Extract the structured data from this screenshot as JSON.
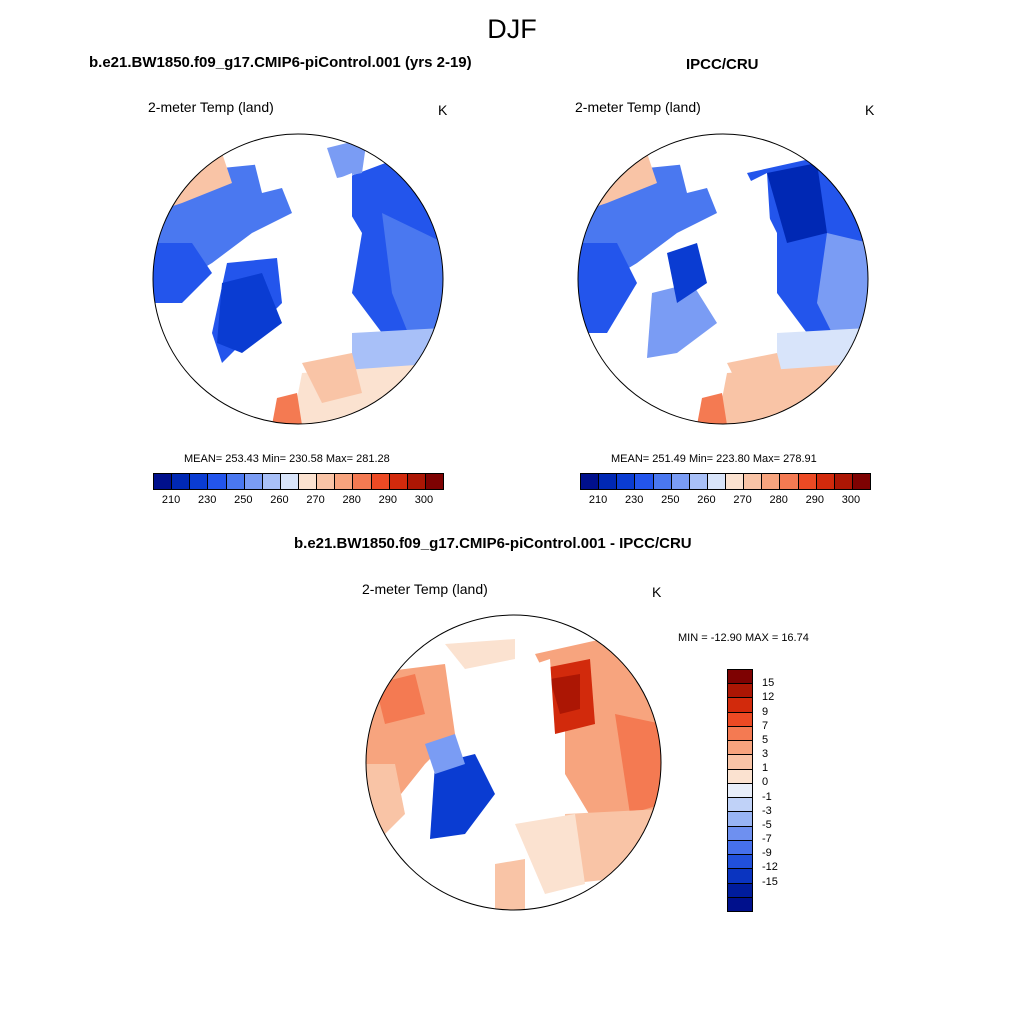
{
  "main_title": "DJF",
  "panels": [
    {
      "title": "b.e21.BW1850.f09_g17.CMIP6-piControl.001 (yrs 2-19)",
      "variable": "2-meter Temp (land)",
      "units": "K",
      "stats": "MEAN= 253.43  Min= 230.58  Max= 281.28"
    },
    {
      "title": "IPCC/CRU",
      "variable": "2-meter Temp (land)",
      "units": "K",
      "stats": "MEAN= 251.49  Min= 223.80  Max= 278.91"
    },
    {
      "title": "b.e21.BW1850.f09_g17.CMIP6-piControl.001 - IPCC/CRU",
      "variable": "2-meter Temp (land)",
      "units": "K",
      "stats": "MIN = -12.90 MAX =  16.74"
    }
  ],
  "colorbar_abs": {
    "colors": [
      "#00108c",
      "#0028b4",
      "#0a3cd2",
      "#2355ec",
      "#4a78f0",
      "#7a9cf4",
      "#a8c0f8",
      "#d8e4fa",
      "#fbe2d0",
      "#f9c4a6",
      "#f7a47e",
      "#f47a52",
      "#ec4a24",
      "#d22a0c",
      "#ac1604",
      "#7e0202"
    ],
    "labels": [
      "210",
      "230",
      "250",
      "260",
      "270",
      "280",
      "290",
      "300"
    ]
  },
  "colorbar_diff": {
    "colors": [
      "#7e0202",
      "#ac1604",
      "#d22a0c",
      "#ec4a24",
      "#f47a52",
      "#f7a47e",
      "#f9c4a6",
      "#fbe2d0",
      "#e8eefa",
      "#c0d2f8",
      "#98b4f4",
      "#6e90f0",
      "#4670ec",
      "#2150dc",
      "#0a34c0",
      "#001c9c",
      "#00108c"
    ],
    "labels": [
      "15",
      "12",
      "9",
      "7",
      "5",
      "3",
      "1",
      "0",
      "-1",
      "-3",
      "-5",
      "-7",
      "-9",
      "-12",
      "-15"
    ]
  }
}
